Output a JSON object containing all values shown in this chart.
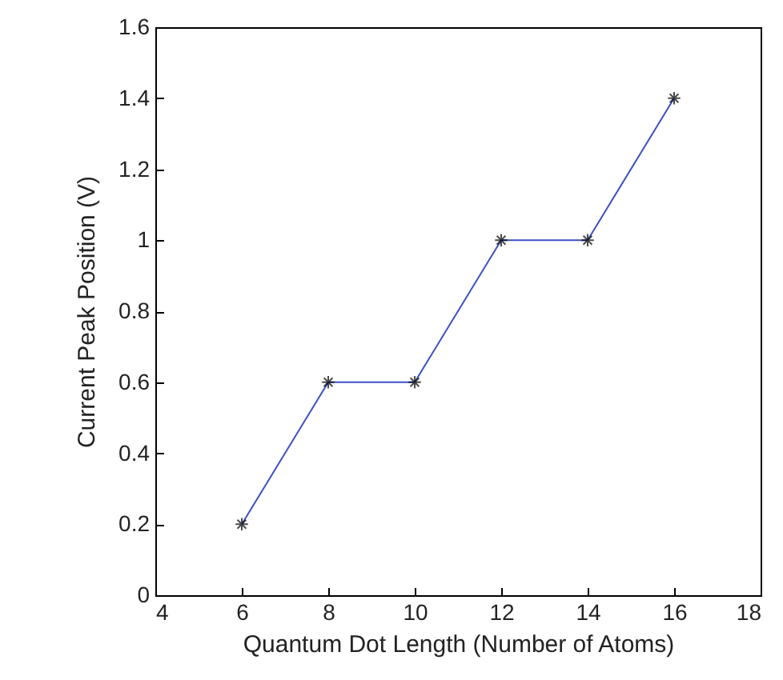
{
  "chart_data": {
    "type": "line",
    "xlabel": "Quantum Dot Length (Number of Atoms)",
    "ylabel": "Current Peak Position (V)",
    "x": [
      6,
      8,
      10,
      12,
      14,
      16
    ],
    "series": [
      {
        "color": "#3d4fc4",
        "values": [
          0.2,
          0.6,
          0.6,
          1.0,
          1.0,
          1.4
        ]
      }
    ],
    "xlim": [
      4,
      18
    ],
    "xticks": [
      4,
      6,
      8,
      10,
      12,
      14,
      16,
      18
    ],
    "ylim": [
      0,
      1.6
    ],
    "yticks": [
      0,
      0.2,
      0.4,
      0.6,
      0.8,
      1,
      1.2,
      1.4,
      1.6
    ],
    "grid": false,
    "marker": "cross",
    "line_style": "solid"
  }
}
